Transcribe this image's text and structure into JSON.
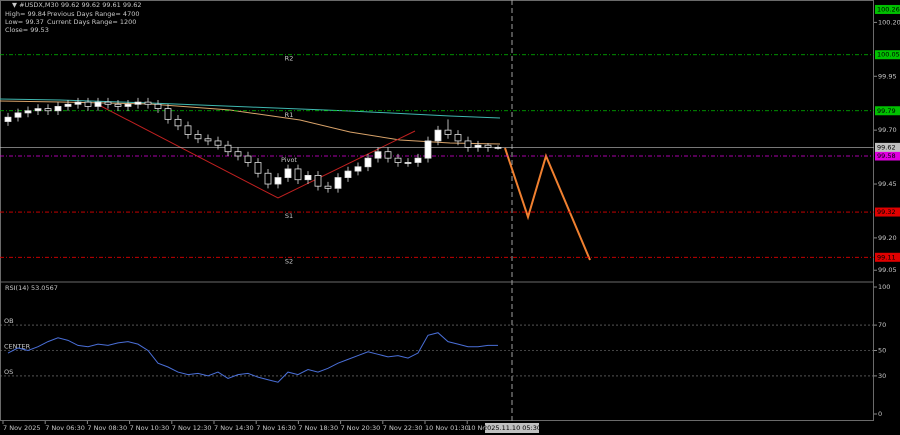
{
  "header": {
    "symbol": "▼ #USDX,M30  99.62 99.62 99.61 99.62",
    "high": "High= 99.84",
    "low": "Low= 99.37",
    "close": "Close= 99.53",
    "prev_range": "Previous Days Range= 4700",
    "cur_range": "Current Days Range= 1200"
  },
  "chart_data": [
    {
      "type": "candlestick",
      "open": [
        99.74,
        99.76,
        99.78,
        99.79,
        99.8,
        99.79,
        99.81,
        99.82,
        99.83,
        99.81,
        99.83,
        99.82,
        99.81,
        99.82,
        99.83,
        99.82,
        99.8,
        99.75,
        99.72,
        99.68,
        99.66,
        99.65,
        99.63,
        99.6,
        99.58,
        99.55,
        99.5,
        99.45,
        99.48,
        99.52,
        99.47,
        99.49,
        99.44,
        99.43,
        99.48,
        99.51,
        99.53,
        99.57,
        99.6,
        99.57,
        99.55,
        99.55,
        99.57,
        99.65,
        99.7,
        99.68,
        99.65,
        99.62,
        99.63,
        99.62
      ],
      "high": [
        99.78,
        99.8,
        99.81,
        99.82,
        99.82,
        99.83,
        99.84,
        99.85,
        99.85,
        99.85,
        99.85,
        99.84,
        99.84,
        99.85,
        99.85,
        99.84,
        99.82,
        99.77,
        99.74,
        99.7,
        99.68,
        99.67,
        99.65,
        99.62,
        99.6,
        99.57,
        99.52,
        99.5,
        99.54,
        99.54,
        99.51,
        99.51,
        99.46,
        99.5,
        99.53,
        99.55,
        99.59,
        99.62,
        99.62,
        99.59,
        99.57,
        99.59,
        99.67,
        99.72,
        99.75,
        99.7,
        99.67,
        99.65,
        99.64,
        99.63
      ],
      "low": [
        99.72,
        99.74,
        99.76,
        99.77,
        99.77,
        99.77,
        99.79,
        99.8,
        99.79,
        99.79,
        99.8,
        99.79,
        99.79,
        99.8,
        99.8,
        99.78,
        99.73,
        99.7,
        99.66,
        99.64,
        99.63,
        99.61,
        99.58,
        99.56,
        99.53,
        99.48,
        99.43,
        99.43,
        99.46,
        99.45,
        99.45,
        99.42,
        99.41,
        99.41,
        99.46,
        99.49,
        99.51,
        99.55,
        99.55,
        99.53,
        99.53,
        99.53,
        99.55,
        99.63,
        99.66,
        99.63,
        99.6,
        99.6,
        99.6,
        99.61
      ],
      "close": [
        99.76,
        99.78,
        99.79,
        99.8,
        99.79,
        99.81,
        99.82,
        99.83,
        99.81,
        99.83,
        99.82,
        99.81,
        99.82,
        99.83,
        99.82,
        99.8,
        99.75,
        99.72,
        99.68,
        99.66,
        99.65,
        99.63,
        99.6,
        99.58,
        99.55,
        99.5,
        99.45,
        99.48,
        99.52,
        99.47,
        99.49,
        99.44,
        99.43,
        99.48,
        99.51,
        99.53,
        99.57,
        99.6,
        99.57,
        99.55,
        99.55,
        99.57,
        99.65,
        99.7,
        99.68,
        99.65,
        99.62,
        99.63,
        99.62,
        99.62
      ],
      "ylim": [
        99.0,
        100.29
      ],
      "yticks": [
        99.05,
        {
          "value": 99.2,
          "label": "99.20"
        },
        99.45,
        {
          "value": 99.7,
          "label": "99.70"
        },
        99.95,
        {
          "value": 100.2,
          "label": "100.20"
        }
      ],
      "levels": [
        {
          "name": "R2",
          "value": 100.05,
          "color": "#00c000"
        },
        {
          "name": "R1",
          "value": 99.79,
          "color": "#00c000"
        },
        {
          "name": "Pivot",
          "value": 99.58,
          "color": "#e000e0"
        },
        {
          "name": "S1",
          "value": 99.32,
          "color": "#e00000"
        },
        {
          "name": "S2",
          "value": 99.11,
          "color": "#e00000"
        }
      ],
      "price_tags": [
        {
          "value": 100.26,
          "color": "#00c000"
        },
        {
          "value": 99.62,
          "color": "#c0c0c0"
        }
      ],
      "x_labels": [
        "7 Nov 2025",
        "7 Nov 06:30",
        "7 Nov 08:30",
        "7 Nov 10:30",
        "7 Nov 12:30",
        "7 Nov 14:30",
        "7 Nov 16:30",
        "7 Nov 18:30",
        "7 Nov 20:30",
        "7 Nov 22:30",
        "10 Nov 01:30",
        "10 No"
      ],
      "cursor_label": "2025.11.10 05:30"
    },
    {
      "type": "line",
      "title": "RSI(14) 53.0567",
      "color": "#4a6fd8",
      "values": [
        48,
        52,
        50,
        53,
        57,
        60,
        58,
        54,
        53,
        55,
        54,
        56,
        57,
        55,
        50,
        40,
        37,
        33,
        31,
        32,
        30,
        33,
        28,
        31,
        32,
        29,
        27,
        25,
        33,
        31,
        35,
        33,
        36,
        40,
        43,
        46,
        49,
        47,
        45,
        46,
        44,
        48,
        62,
        64,
        57,
        55,
        53,
        53,
        54,
        54
      ],
      "ylim": [
        0,
        100
      ],
      "yticks": [
        0,
        30,
        50,
        70,
        100
      ],
      "levels": [
        {
          "name": "OB",
          "value": 70
        },
        {
          "name": "CENTER",
          "value": 50
        },
        {
          "name": "OS",
          "value": 30
        }
      ]
    }
  ]
}
